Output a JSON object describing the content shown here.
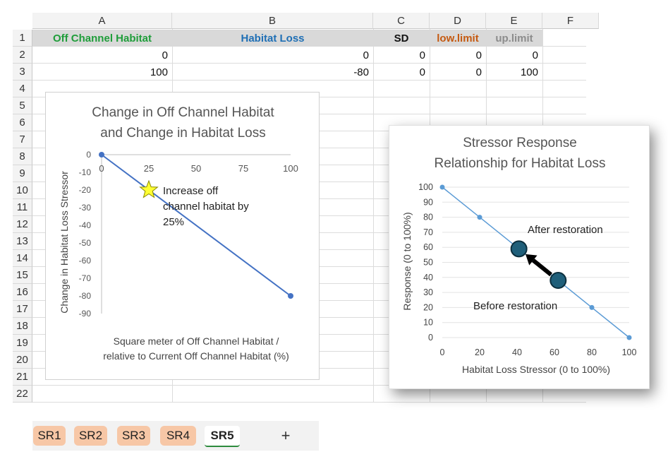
{
  "columns": [
    "A",
    "B",
    "C",
    "D",
    "E",
    "F"
  ],
  "rows": [
    "1",
    "2",
    "3",
    "4",
    "5",
    "6",
    "7",
    "8",
    "9",
    "10",
    "11",
    "12",
    "13",
    "14",
    "15",
    "16",
    "17",
    "18",
    "19",
    "20",
    "21",
    "22"
  ],
  "header_row": {
    "a": "Off Channel Habitat",
    "b": "Habitat Loss",
    "c": "SD",
    "d": "low.limit",
    "e": "up.limit"
  },
  "header_colors": {
    "a": "#1f9d3a",
    "b": "#1f6fb5",
    "c": "#111111",
    "d": "#c55a11",
    "e": "#8c8c8c"
  },
  "data_rows": [
    {
      "a": "0",
      "b": "0",
      "c": "0",
      "d": "0",
      "e": "0"
    },
    {
      "a": "100",
      "b": "-80",
      "c": "0",
      "d": "0",
      "e": "100"
    }
  ],
  "chart1": {
    "title_line1": "Change in Off Channel Habitat",
    "title_line2": "and Change in Habitat Loss",
    "ylabel": "Change in Habitat Loss Stressor",
    "xlabel_line1": "Square meter of Off Channel Habitat /",
    "xlabel_line2": "relative to Current Off Channel Habitat (%)",
    "annotation_line1": "Increase off",
    "annotation_line2": "channel habitat by",
    "annotation_line3": "25%",
    "x_ticks": [
      "0",
      "25",
      "50",
      "75",
      "100"
    ],
    "y_ticks": [
      "0",
      "-10",
      "-20",
      "-30",
      "-40",
      "-50",
      "-60",
      "-70",
      "-80",
      "-90"
    ],
    "line_color": "#4472c4"
  },
  "chart2": {
    "title_line1": "Stressor Response",
    "title_line2": "Relationship for Habitat Loss",
    "ylabel": "Response (0 to 100%)",
    "xlabel": "Habitat Loss Stressor (0 to 100%)",
    "after_label": "After restoration",
    "before_label": "Before restoration",
    "x_ticks": [
      "0",
      "20",
      "40",
      "60",
      "80",
      "100"
    ],
    "y_ticks": [
      "0",
      "10",
      "20",
      "30",
      "40",
      "50",
      "60",
      "70",
      "80",
      "90",
      "100"
    ],
    "line_color": "#5b9bd5",
    "marker_color": "#1f5f7a"
  },
  "chart_data": [
    {
      "type": "line",
      "title": "Change in Off Channel Habitat and Change in Habitat Loss",
      "xlabel": "Square meter of Off Channel Habitat / relative to Current Off Channel Habitat (%)",
      "ylabel": "Change in Habitat Loss Stressor",
      "x": [
        0,
        100
      ],
      "series": [
        {
          "values": [
            0,
            -80
          ]
        }
      ],
      "xlim": [
        0,
        100
      ],
      "ylim": [
        -90,
        0
      ],
      "highlight_point": {
        "x": 25,
        "y": -20,
        "marker": "star"
      },
      "annotations": [
        "Increase off channel habitat by 25%"
      ]
    },
    {
      "type": "line",
      "title": "Stressor Response Relationship for Habitat Loss",
      "xlabel": "Habitat Loss Stressor (0 to 100%)",
      "ylabel": "Response (0 to 100%)",
      "x": [
        0,
        20,
        80,
        100
      ],
      "series": [
        {
          "values": [
            100,
            80,
            20,
            0
          ]
        }
      ],
      "xlim": [
        0,
        100
      ],
      "ylim": [
        0,
        100
      ],
      "highlight_points": [
        {
          "label": "Before restoration",
          "x": 62,
          "y": 38
        },
        {
          "label": "After restoration",
          "x": 41,
          "y": 59
        }
      ]
    }
  ],
  "tabs": [
    "SR1",
    "SR2",
    "SR3",
    "SR4",
    "SR5"
  ],
  "active_tab": "SR5",
  "add_tab_label": "+"
}
